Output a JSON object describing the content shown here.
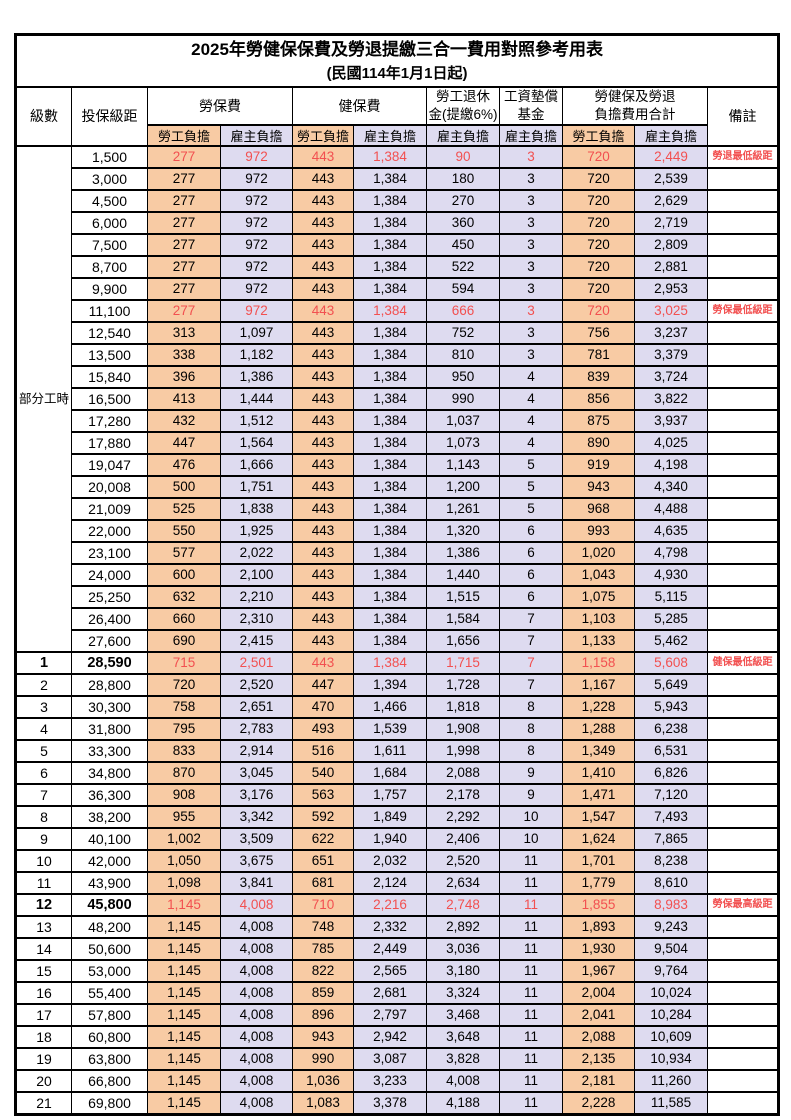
{
  "title": {
    "line1": "2025年勞健保保費及勞退提繳三合一費用對照參考用表",
    "line2": "(民國114年1月1日起)"
  },
  "columns": {
    "level": "級數",
    "salary": "投保級距",
    "labor": "勞保費",
    "health": "健保費",
    "pension_l1": "勞工退休",
    "pension_l2": "金(提繳6%)",
    "wage_fund_l1": "工資墊償",
    "wage_fund_l2": "基金",
    "total_l1": "勞健保及勞退",
    "total_l2": "負擔費用合計",
    "remark": "備註",
    "employee": "勞工負擔",
    "employer": "雇主負擔"
  },
  "part_time_label": "部分工時",
  "colors": {
    "employee_bg": "#F8CBA4",
    "employer_bg": "#DEDBF0",
    "highlight_text": "#F25050"
  },
  "part_time_rows": [
    {
      "salary": "1,500",
      "values": [
        "277",
        "972",
        "443",
        "1,384",
        "90",
        "3",
        "720",
        "2,449"
      ],
      "remark": "勞退最低級距",
      "red": true
    },
    {
      "salary": "3,000",
      "values": [
        "277",
        "972",
        "443",
        "1,384",
        "180",
        "3",
        "720",
        "2,539"
      ],
      "remark": ""
    },
    {
      "salary": "4,500",
      "values": [
        "277",
        "972",
        "443",
        "1,384",
        "270",
        "3",
        "720",
        "2,629"
      ],
      "remark": ""
    },
    {
      "salary": "6,000",
      "values": [
        "277",
        "972",
        "443",
        "1,384",
        "360",
        "3",
        "720",
        "2,719"
      ],
      "remark": ""
    },
    {
      "salary": "7,500",
      "values": [
        "277",
        "972",
        "443",
        "1,384",
        "450",
        "3",
        "720",
        "2,809"
      ],
      "remark": ""
    },
    {
      "salary": "8,700",
      "values": [
        "277",
        "972",
        "443",
        "1,384",
        "522",
        "3",
        "720",
        "2,881"
      ],
      "remark": ""
    },
    {
      "salary": "9,900",
      "values": [
        "277",
        "972",
        "443",
        "1,384",
        "594",
        "3",
        "720",
        "2,953"
      ],
      "remark": ""
    },
    {
      "salary": "11,100",
      "values": [
        "277",
        "972",
        "443",
        "1,384",
        "666",
        "3",
        "720",
        "3,025"
      ],
      "remark": "勞保最低級距",
      "red": true
    },
    {
      "salary": "12,540",
      "values": [
        "313",
        "1,097",
        "443",
        "1,384",
        "752",
        "3",
        "756",
        "3,237"
      ],
      "remark": ""
    },
    {
      "salary": "13,500",
      "values": [
        "338",
        "1,182",
        "443",
        "1,384",
        "810",
        "3",
        "781",
        "3,379"
      ],
      "remark": ""
    },
    {
      "salary": "15,840",
      "values": [
        "396",
        "1,386",
        "443",
        "1,384",
        "950",
        "4",
        "839",
        "3,724"
      ],
      "remark": ""
    },
    {
      "salary": "16,500",
      "values": [
        "413",
        "1,444",
        "443",
        "1,384",
        "990",
        "4",
        "856",
        "3,822"
      ],
      "remark": ""
    },
    {
      "salary": "17,280",
      "values": [
        "432",
        "1,512",
        "443",
        "1,384",
        "1,037",
        "4",
        "875",
        "3,937"
      ],
      "remark": ""
    },
    {
      "salary": "17,880",
      "values": [
        "447",
        "1,564",
        "443",
        "1,384",
        "1,073",
        "4",
        "890",
        "4,025"
      ],
      "remark": ""
    },
    {
      "salary": "19,047",
      "values": [
        "476",
        "1,666",
        "443",
        "1,384",
        "1,143",
        "5",
        "919",
        "4,198"
      ],
      "remark": ""
    },
    {
      "salary": "20,008",
      "values": [
        "500",
        "1,751",
        "443",
        "1,384",
        "1,200",
        "5",
        "943",
        "4,340"
      ],
      "remark": ""
    },
    {
      "salary": "21,009",
      "values": [
        "525",
        "1,838",
        "443",
        "1,384",
        "1,261",
        "5",
        "968",
        "4,488"
      ],
      "remark": ""
    },
    {
      "salary": "22,000",
      "values": [
        "550",
        "1,925",
        "443",
        "1,384",
        "1,320",
        "6",
        "993",
        "4,635"
      ],
      "remark": ""
    },
    {
      "salary": "23,100",
      "values": [
        "577",
        "2,022",
        "443",
        "1,384",
        "1,386",
        "6",
        "1,020",
        "4,798"
      ],
      "remark": ""
    },
    {
      "salary": "24,000",
      "values": [
        "600",
        "2,100",
        "443",
        "1,384",
        "1,440",
        "6",
        "1,043",
        "4,930"
      ],
      "remark": ""
    },
    {
      "salary": "25,250",
      "values": [
        "632",
        "2,210",
        "443",
        "1,384",
        "1,515",
        "6",
        "1,075",
        "5,115"
      ],
      "remark": ""
    },
    {
      "salary": "26,400",
      "values": [
        "660",
        "2,310",
        "443",
        "1,384",
        "1,584",
        "7",
        "1,103",
        "5,285"
      ],
      "remark": ""
    },
    {
      "salary": "27,600",
      "values": [
        "690",
        "2,415",
        "443",
        "1,384",
        "1,656",
        "7",
        "1,133",
        "5,462"
      ],
      "remark": ""
    }
  ],
  "level_rows": [
    {
      "level": "1",
      "salary": "28,590",
      "values": [
        "715",
        "2,501",
        "443",
        "1,384",
        "1,715",
        "7",
        "1,158",
        "5,608"
      ],
      "remark": "健保最低級距",
      "red": true,
      "bold": true
    },
    {
      "level": "2",
      "salary": "28,800",
      "values": [
        "720",
        "2,520",
        "447",
        "1,394",
        "1,728",
        "7",
        "1,167",
        "5,649"
      ],
      "remark": ""
    },
    {
      "level": "3",
      "salary": "30,300",
      "values": [
        "758",
        "2,651",
        "470",
        "1,466",
        "1,818",
        "8",
        "1,228",
        "5,943"
      ],
      "remark": ""
    },
    {
      "level": "4",
      "salary": "31,800",
      "values": [
        "795",
        "2,783",
        "493",
        "1,539",
        "1,908",
        "8",
        "1,288",
        "6,238"
      ],
      "remark": ""
    },
    {
      "level": "5",
      "salary": "33,300",
      "values": [
        "833",
        "2,914",
        "516",
        "1,611",
        "1,998",
        "8",
        "1,349",
        "6,531"
      ],
      "remark": ""
    },
    {
      "level": "6",
      "salary": "34,800",
      "values": [
        "870",
        "3,045",
        "540",
        "1,684",
        "2,088",
        "9",
        "1,410",
        "6,826"
      ],
      "remark": ""
    },
    {
      "level": "7",
      "salary": "36,300",
      "values": [
        "908",
        "3,176",
        "563",
        "1,757",
        "2,178",
        "9",
        "1,471",
        "7,120"
      ],
      "remark": ""
    },
    {
      "level": "8",
      "salary": "38,200",
      "values": [
        "955",
        "3,342",
        "592",
        "1,849",
        "2,292",
        "10",
        "1,547",
        "7,493"
      ],
      "remark": ""
    },
    {
      "level": "9",
      "salary": "40,100",
      "values": [
        "1,002",
        "3,509",
        "622",
        "1,940",
        "2,406",
        "10",
        "1,624",
        "7,865"
      ],
      "remark": ""
    },
    {
      "level": "10",
      "salary": "42,000",
      "values": [
        "1,050",
        "3,675",
        "651",
        "2,032",
        "2,520",
        "11",
        "1,701",
        "8,238"
      ],
      "remark": ""
    },
    {
      "level": "11",
      "salary": "43,900",
      "values": [
        "1,098",
        "3,841",
        "681",
        "2,124",
        "2,634",
        "11",
        "1,779",
        "8,610"
      ],
      "remark": ""
    },
    {
      "level": "12",
      "salary": "45,800",
      "values": [
        "1,145",
        "4,008",
        "710",
        "2,216",
        "2,748",
        "11",
        "1,855",
        "8,983"
      ],
      "remark": "勞保最高級距",
      "red": true,
      "bold": true
    },
    {
      "level": "13",
      "salary": "48,200",
      "values": [
        "1,145",
        "4,008",
        "748",
        "2,332",
        "2,892",
        "11",
        "1,893",
        "9,243"
      ],
      "remark": ""
    },
    {
      "level": "14",
      "salary": "50,600",
      "values": [
        "1,145",
        "4,008",
        "785",
        "2,449",
        "3,036",
        "11",
        "1,930",
        "9,504"
      ],
      "remark": ""
    },
    {
      "level": "15",
      "salary": "53,000",
      "values": [
        "1,145",
        "4,008",
        "822",
        "2,565",
        "3,180",
        "11",
        "1,967",
        "9,764"
      ],
      "remark": ""
    },
    {
      "level": "16",
      "salary": "55,400",
      "values": [
        "1,145",
        "4,008",
        "859",
        "2,681",
        "3,324",
        "11",
        "2,004",
        "10,024"
      ],
      "remark": ""
    },
    {
      "level": "17",
      "salary": "57,800",
      "values": [
        "1,145",
        "4,008",
        "896",
        "2,797",
        "3,468",
        "11",
        "2,041",
        "10,284"
      ],
      "remark": ""
    },
    {
      "level": "18",
      "salary": "60,800",
      "values": [
        "1,145",
        "4,008",
        "943",
        "2,942",
        "3,648",
        "11",
        "2,088",
        "10,609"
      ],
      "remark": ""
    },
    {
      "level": "19",
      "salary": "63,800",
      "values": [
        "1,145",
        "4,008",
        "990",
        "3,087",
        "3,828",
        "11",
        "2,135",
        "10,934"
      ],
      "remark": ""
    },
    {
      "level": "20",
      "salary": "66,800",
      "values": [
        "1,145",
        "4,008",
        "1,036",
        "3,233",
        "4,008",
        "11",
        "2,181",
        "11,260"
      ],
      "remark": ""
    },
    {
      "level": "21",
      "salary": "69,800",
      "values": [
        "1,145",
        "4,008",
        "1,083",
        "3,378",
        "4,188",
        "11",
        "2,228",
        "11,585"
      ],
      "remark": ""
    }
  ]
}
